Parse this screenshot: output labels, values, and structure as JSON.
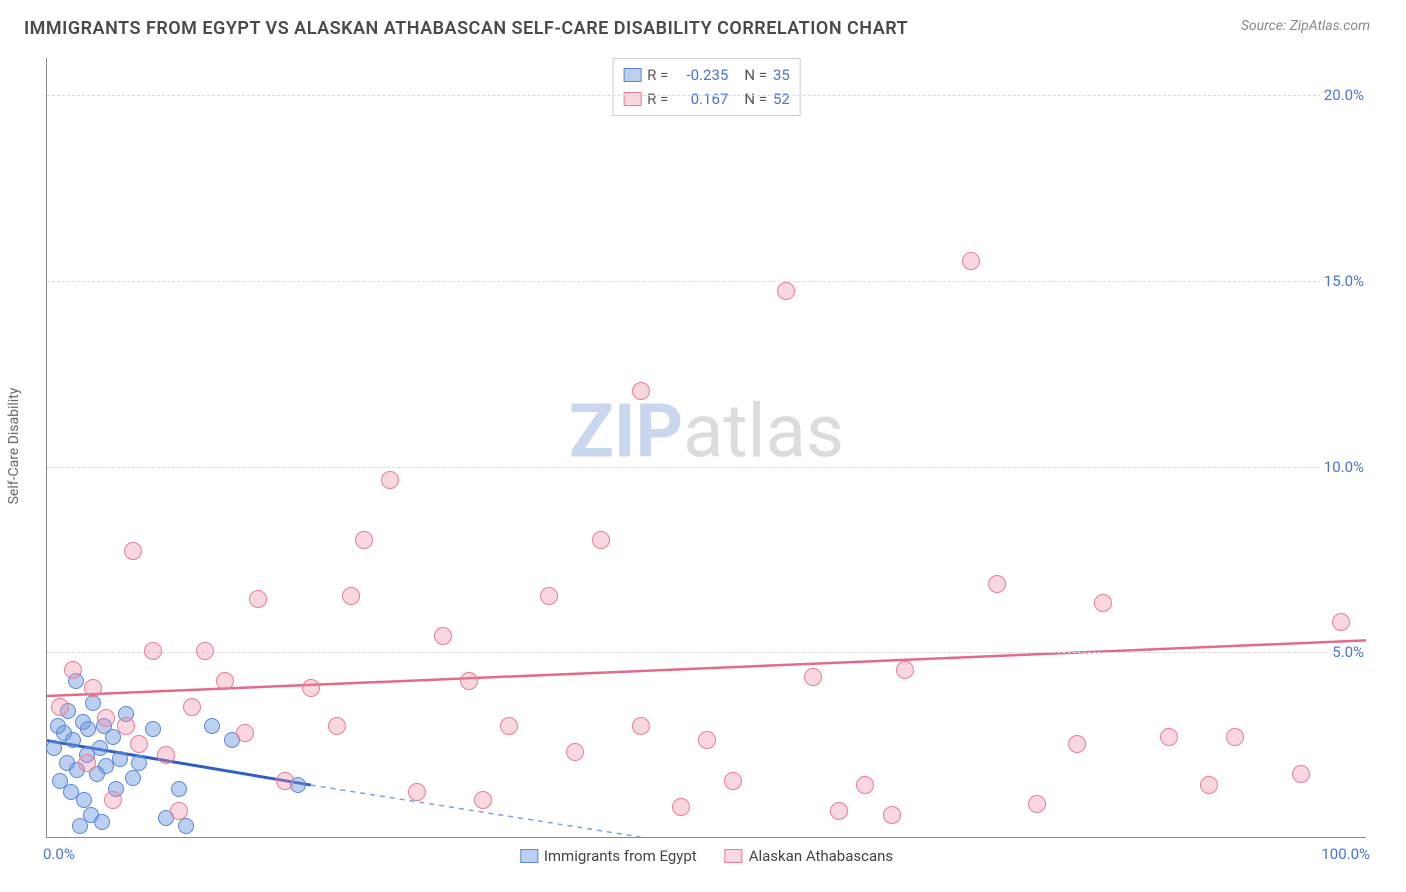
{
  "header": {
    "title": "IMMIGRANTS FROM EGYPT VS ALASKAN ATHABASCAN SELF-CARE DISABILITY CORRELATION CHART",
    "source": "Source: ZipAtlas.com"
  },
  "chart": {
    "type": "scatter",
    "ylabel": "Self-Care Disability",
    "xlim": [
      0,
      100
    ],
    "ylim": [
      0,
      21
    ],
    "ytick_values": [
      5,
      10,
      15,
      20
    ],
    "ytick_labels": [
      "5.0%",
      "10.0%",
      "15.0%",
      "20.0%"
    ],
    "xtick_left": "0.0%",
    "xtick_right": "100.0%",
    "background_color": "#ffffff",
    "grid_color": "#d8d8d8",
    "axis_color": "#888888",
    "watermark": {
      "z": "ZIP",
      "a": "atlas",
      "z_color": "#c9d6ef",
      "a_color": "#dcdcdc"
    },
    "series": [
      {
        "name": "Immigrants from Egypt",
        "fill": "rgba(105,150,222,0.45)",
        "stroke": "#5b86d6",
        "marker_radius": 8,
        "R": "-0.235",
        "N": "35",
        "trend": {
          "x1": 0,
          "y1": 2.6,
          "x2": 20,
          "y2": 1.4,
          "color": "#2f5fc1",
          "width": 3,
          "dash": "none"
        },
        "trend_extend": {
          "x1": 20,
          "y1": 1.4,
          "x2": 45,
          "y2": 0,
          "color": "#7fa0dd",
          "width": 1.5,
          "dash": "5,5"
        },
        "points": [
          [
            0.5,
            2.4
          ],
          [
            0.8,
            3.0
          ],
          [
            1.0,
            1.5
          ],
          [
            1.3,
            2.8
          ],
          [
            1.5,
            2.0
          ],
          [
            1.6,
            3.4
          ],
          [
            1.8,
            1.2
          ],
          [
            2.0,
            2.6
          ],
          [
            2.2,
            4.2
          ],
          [
            2.3,
            1.8
          ],
          [
            2.5,
            0.3
          ],
          [
            2.7,
            3.1
          ],
          [
            2.8,
            1.0
          ],
          [
            3.0,
            2.2
          ],
          [
            3.1,
            2.9
          ],
          [
            3.3,
            0.6
          ],
          [
            3.5,
            3.6
          ],
          [
            3.8,
            1.7
          ],
          [
            4.0,
            2.4
          ],
          [
            4.2,
            0.4
          ],
          [
            4.3,
            3.0
          ],
          [
            4.5,
            1.9
          ],
          [
            5.0,
            2.7
          ],
          [
            5.2,
            1.3
          ],
          [
            5.5,
            2.1
          ],
          [
            6.0,
            3.3
          ],
          [
            6.5,
            1.6
          ],
          [
            7.0,
            2.0
          ],
          [
            8.0,
            2.9
          ],
          [
            9.0,
            0.5
          ],
          [
            10.0,
            1.3
          ],
          [
            10.5,
            0.3
          ],
          [
            12.5,
            3.0
          ],
          [
            14.0,
            2.6
          ],
          [
            19.0,
            1.4
          ]
        ]
      },
      {
        "name": "Alaskan Athabascans",
        "fill": "rgba(238,140,164,0.35)",
        "stroke": "#e77c97",
        "marker_radius": 9,
        "R": "0.167",
        "N": "52",
        "trend": {
          "x1": 0,
          "y1": 3.8,
          "x2": 100,
          "y2": 5.3,
          "color": "#e36b8a",
          "width": 2.5,
          "dash": "none"
        },
        "points": [
          [
            1.0,
            3.5
          ],
          [
            2.0,
            4.5
          ],
          [
            3.0,
            2.0
          ],
          [
            3.5,
            4.0
          ],
          [
            4.5,
            3.2
          ],
          [
            5.0,
            1.0
          ],
          [
            6.0,
            3.0
          ],
          [
            7.0,
            2.5
          ],
          [
            6.5,
            7.7
          ],
          [
            8.0,
            5.0
          ],
          [
            9.0,
            2.2
          ],
          [
            10.0,
            0.7
          ],
          [
            11.0,
            3.5
          ],
          [
            12.0,
            5.0
          ],
          [
            13.5,
            4.2
          ],
          [
            15.0,
            2.8
          ],
          [
            16.0,
            6.4
          ],
          [
            18.0,
            1.5
          ],
          [
            20.0,
            4.0
          ],
          [
            22.0,
            3.0
          ],
          [
            24.0,
            8.0
          ],
          [
            26.0,
            9.6
          ],
          [
            28.0,
            1.2
          ],
          [
            23.0,
            6.5
          ],
          [
            30.0,
            5.4
          ],
          [
            32.0,
            4.2
          ],
          [
            33.0,
            1.0
          ],
          [
            35.0,
            3.0
          ],
          [
            38.0,
            6.5
          ],
          [
            40.0,
            2.3
          ],
          [
            42.0,
            8.0
          ],
          [
            45.0,
            3.0
          ],
          [
            48.0,
            0.8
          ],
          [
            45.0,
            12.0
          ],
          [
            50.0,
            2.6
          ],
          [
            52.0,
            1.5
          ],
          [
            56.0,
            14.7
          ],
          [
            58.0,
            4.3
          ],
          [
            60.0,
            0.7
          ],
          [
            62.0,
            1.4
          ],
          [
            64.0,
            0.6
          ],
          [
            65.0,
            4.5
          ],
          [
            70.0,
            15.5
          ],
          [
            72.0,
            6.8
          ],
          [
            75.0,
            0.9
          ],
          [
            78.0,
            2.5
          ],
          [
            80.0,
            6.3
          ],
          [
            85.0,
            2.7
          ],
          [
            88.0,
            1.4
          ],
          [
            90.0,
            2.7
          ],
          [
            95.0,
            1.7
          ],
          [
            98.0,
            5.8
          ]
        ]
      }
    ],
    "legend_bottom": [
      {
        "label": "Immigrants from Egypt",
        "fill": "rgba(105,150,222,0.45)",
        "stroke": "#5b86d6"
      },
      {
        "label": "Alaskan Athabascans",
        "fill": "rgba(238,140,164,0.35)",
        "stroke": "#e77c97"
      }
    ]
  }
}
